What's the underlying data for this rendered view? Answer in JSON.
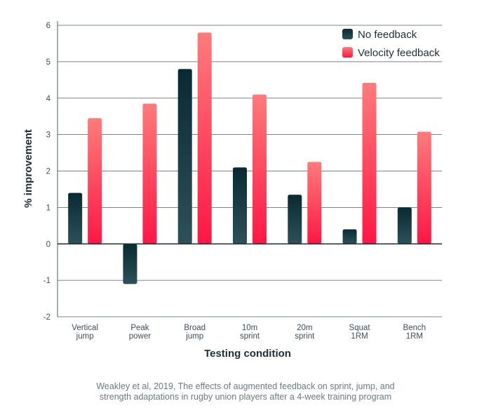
{
  "chart_data": {
    "type": "bar",
    "ylabel": "% improvement",
    "xlabel": "Testing condition",
    "ylim": [
      -2,
      6
    ],
    "yticks": [
      -2,
      -1,
      0,
      1,
      2,
      3,
      4,
      5,
      6
    ],
    "grid": true,
    "legend_position": "top-right",
    "categories": [
      [
        "Vertical",
        "jump"
      ],
      [
        "Peak",
        "power"
      ],
      [
        "Broad",
        "jump"
      ],
      [
        "10m",
        "sprint"
      ],
      [
        "20m",
        "sprint"
      ],
      [
        "Squat",
        "1RM"
      ],
      [
        "Bench",
        "1RM"
      ]
    ],
    "series": [
      {
        "name": "No feedback",
        "color_top": "#082a33",
        "color_bottom": "#2e5159",
        "values": [
          1.4,
          -1.1,
          4.8,
          2.1,
          1.35,
          0.4,
          1.0
        ]
      },
      {
        "name": "Velocity feedback",
        "color_top": "#ff7b7b",
        "color_bottom": "#ff1744",
        "values": [
          3.45,
          3.85,
          5.8,
          4.1,
          2.25,
          4.42,
          3.08
        ]
      }
    ]
  },
  "caption": {
    "line1": "Weakley et al, 2019, The effects of augmented feedback on sprint, jump, and",
    "line2": "strength adaptations in rugby union players after a 4-week training program"
  }
}
